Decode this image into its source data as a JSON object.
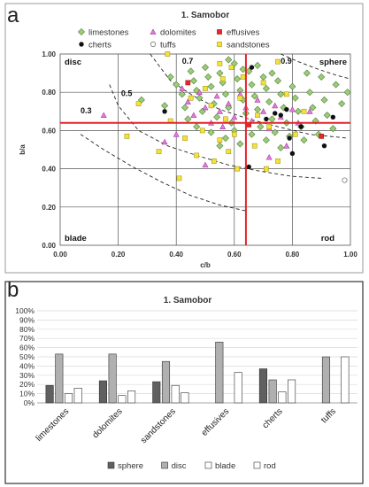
{
  "panel_a_letter": "a",
  "panel_b_letter": "b",
  "chart_data": [
    {
      "type": "scatter",
      "title": "1. Samobor",
      "xlabel": "c/b",
      "ylabel": "b/a",
      "xlim": [
        0,
        1
      ],
      "ylim": [
        0,
        1
      ],
      "xticks": [
        "0.00",
        "0.20",
        "0.40",
        "0.60",
        "0.80",
        "1.00"
      ],
      "yticks": [
        "0.00",
        "0.20",
        "0.40",
        "0.60",
        "0.80",
        "1.00"
      ],
      "grid": true,
      "legend": "top",
      "corner_labels": {
        "disc": "disc",
        "sphere": "sphere",
        "blade": "blade",
        "rod": "rod"
      },
      "contour_labels": [
        "0.3",
        "0.5",
        "0.7",
        "0.9"
      ],
      "reference_lines": {
        "x": 0.64,
        "y": 0.64
      },
      "series": [
        {
          "name": "limestones",
          "marker": "diamond",
          "color": "#9ccc7a",
          "points": [
            [
              0.28,
              0.76
            ],
            [
              0.36,
              0.73
            ],
            [
              0.38,
              0.88
            ],
            [
              0.4,
              0.84
            ],
            [
              0.42,
              0.79
            ],
            [
              0.43,
              0.72
            ],
            [
              0.45,
              0.91
            ],
            [
              0.46,
              0.86
            ],
            [
              0.47,
              0.81
            ],
            [
              0.48,
              0.77
            ],
            [
              0.49,
              0.7
            ],
            [
              0.5,
              0.93
            ],
            [
              0.51,
              0.88
            ],
            [
              0.52,
              0.83
            ],
            [
              0.53,
              0.74
            ],
            [
              0.54,
              0.67
            ],
            [
              0.55,
              0.9
            ],
            [
              0.56,
              0.85
            ],
            [
              0.57,
              0.79
            ],
            [
              0.58,
              0.72
            ],
            [
              0.59,
              0.64
            ],
            [
              0.6,
              0.95
            ],
            [
              0.61,
              0.87
            ],
            [
              0.62,
              0.81
            ],
            [
              0.63,
              0.76
            ],
            [
              0.64,
              0.69
            ],
            [
              0.65,
              0.91
            ],
            [
              0.66,
              0.84
            ],
            [
              0.67,
              0.78
            ],
            [
              0.68,
              0.71
            ],
            [
              0.69,
              0.62
            ],
            [
              0.7,
              0.88
            ],
            [
              0.71,
              0.82
            ],
            [
              0.72,
              0.75
            ],
            [
              0.73,
              0.66
            ],
            [
              0.74,
              0.59
            ],
            [
              0.75,
              0.86
            ],
            [
              0.76,
              0.79
            ],
            [
              0.77,
              0.72
            ],
            [
              0.78,
              0.64
            ],
            [
              0.79,
              0.57
            ],
            [
              0.8,
              0.83
            ],
            [
              0.81,
              0.77
            ],
            [
              0.82,
              0.7
            ],
            [
              0.83,
              0.62
            ],
            [
              0.84,
              0.55
            ],
            [
              0.86,
              0.8
            ],
            [
              0.87,
              0.72
            ],
            [
              0.88,
              0.65
            ],
            [
              0.89,
              0.58
            ],
            [
              0.91,
              0.76
            ],
            [
              0.92,
              0.68
            ],
            [
              0.94,
              0.61
            ],
            [
              0.95,
              0.84
            ],
            [
              0.97,
              0.74
            ],
            [
              0.99,
              0.8
            ],
            [
              0.47,
              0.62
            ],
            [
              0.52,
              0.59
            ],
            [
              0.57,
              0.56
            ],
            [
              0.62,
              0.53
            ],
            [
              0.44,
              0.66
            ],
            [
              0.66,
              0.58
            ],
            [
              0.71,
              0.55
            ],
            [
              0.76,
              0.51
            ],
            [
              0.55,
              0.52
            ],
            [
              0.6,
              0.6
            ],
            [
              0.63,
              0.92
            ],
            [
              0.68,
              0.94
            ],
            [
              0.58,
              0.97
            ],
            [
              0.73,
              0.9
            ],
            [
              0.85,
              0.9
            ],
            [
              0.9,
              0.88
            ]
          ]
        },
        {
          "name": "dolomites",
          "marker": "triangle",
          "color": "#e57ad8",
          "points": [
            [
              0.36,
              0.54
            ],
            [
              0.4,
              0.58
            ],
            [
              0.42,
              0.82
            ],
            [
              0.44,
              0.75
            ],
            [
              0.46,
              0.68
            ],
            [
              0.48,
              0.8
            ],
            [
              0.5,
              0.72
            ],
            [
              0.52,
              0.64
            ],
            [
              0.54,
              0.78
            ],
            [
              0.55,
              0.7
            ],
            [
              0.56,
              0.62
            ],
            [
              0.58,
              0.74
            ],
            [
              0.6,
              0.67
            ],
            [
              0.62,
              0.79
            ],
            [
              0.64,
              0.72
            ],
            [
              0.66,
              0.65
            ],
            [
              0.68,
              0.76
            ],
            [
              0.7,
              0.7
            ],
            [
              0.72,
              0.61
            ],
            [
              0.74,
              0.73
            ],
            [
              0.76,
              0.67
            ],
            [
              0.8,
              0.71
            ],
            [
              0.82,
              0.64
            ],
            [
              0.86,
              0.7
            ],
            [
              0.78,
              0.52
            ],
            [
              0.72,
              0.46
            ],
            [
              0.5,
              0.42
            ],
            [
              0.15,
              0.68
            ]
          ]
        },
        {
          "name": "effusives",
          "marker": "square",
          "color": "#e02a2a",
          "points": [
            [
              0.44,
              0.85
            ],
            [
              0.9,
              0.57
            ],
            [
              0.65,
              0.63
            ]
          ]
        },
        {
          "name": "cherts",
          "marker": "circle",
          "color": "#111111",
          "points": [
            [
              0.36,
              0.7
            ],
            [
              0.57,
              0.66
            ],
            [
              0.65,
              0.41
            ],
            [
              0.66,
              0.93
            ],
            [
              0.71,
              0.66
            ],
            [
              0.74,
              0.69
            ],
            [
              0.76,
              0.68
            ],
            [
              0.78,
              0.71
            ],
            [
              0.79,
              0.56
            ],
            [
              0.83,
              0.62
            ],
            [
              0.91,
              0.52
            ],
            [
              0.94,
              0.67
            ],
            [
              0.8,
              0.48
            ]
          ]
        },
        {
          "name": "tuffs",
          "marker": "open-circle",
          "color": "#ffffff",
          "points": [
            [
              0.98,
              0.34
            ]
          ]
        },
        {
          "name": "sandstones",
          "marker": "square",
          "color": "#f2e33a",
          "points": [
            [
              0.23,
              0.57
            ],
            [
              0.27,
              0.74
            ],
            [
              0.34,
              0.49
            ],
            [
              0.38,
              0.65
            ],
            [
              0.41,
              0.35
            ],
            [
              0.43,
              0.56
            ],
            [
              0.45,
              0.77
            ],
            [
              0.47,
              0.47
            ],
            [
              0.49,
              0.6
            ],
            [
              0.5,
              0.82
            ],
            [
              0.52,
              0.73
            ],
            [
              0.53,
              0.44
            ],
            [
              0.55,
              0.55
            ],
            [
              0.56,
              0.87
            ],
            [
              0.57,
              0.66
            ],
            [
              0.58,
              0.49
            ],
            [
              0.59,
              0.93
            ],
            [
              0.6,
              0.58
            ],
            [
              0.61,
              0.4
            ],
            [
              0.62,
              0.77
            ],
            [
              0.63,
              0.88
            ],
            [
              0.67,
              0.52
            ],
            [
              0.68,
              0.68
            ],
            [
              0.7,
              0.85
            ],
            [
              0.71,
              0.4
            ],
            [
              0.72,
              0.62
            ],
            [
              0.75,
              0.44
            ],
            [
              0.78,
              0.79
            ],
            [
              0.81,
              0.58
            ],
            [
              0.84,
              0.7
            ],
            [
              0.37,
              1.0
            ],
            [
              0.55,
              0.95
            ],
            [
              0.75,
              0.96
            ]
          ]
        }
      ]
    },
    {
      "type": "bar",
      "title": "1. Samobor",
      "categories": [
        "limestones",
        "dolomites",
        "sandstones",
        "effusives",
        "cherts",
        "tuffs"
      ],
      "yticks": [
        "0%",
        "10%",
        "20%",
        "30%",
        "40%",
        "50%",
        "60%",
        "70%",
        "80%",
        "90%",
        "100%"
      ],
      "ylim": [
        0,
        100
      ],
      "legend": "bottom",
      "series": [
        {
          "name": "sphere",
          "color": "#606060",
          "values": [
            19,
            24,
            23,
            0,
            37,
            0
          ]
        },
        {
          "name": "disc",
          "color": "#b0b0b0",
          "values": [
            53,
            53,
            45,
            66,
            25,
            50
          ]
        },
        {
          "name": "blade",
          "color": "#ffffff",
          "values": [
            10,
            8,
            19,
            0,
            12,
            0
          ]
        },
        {
          "name": "rod",
          "color": "#ffffff",
          "values": [
            16,
            13,
            11,
            33,
            25,
            50
          ]
        }
      ]
    }
  ]
}
